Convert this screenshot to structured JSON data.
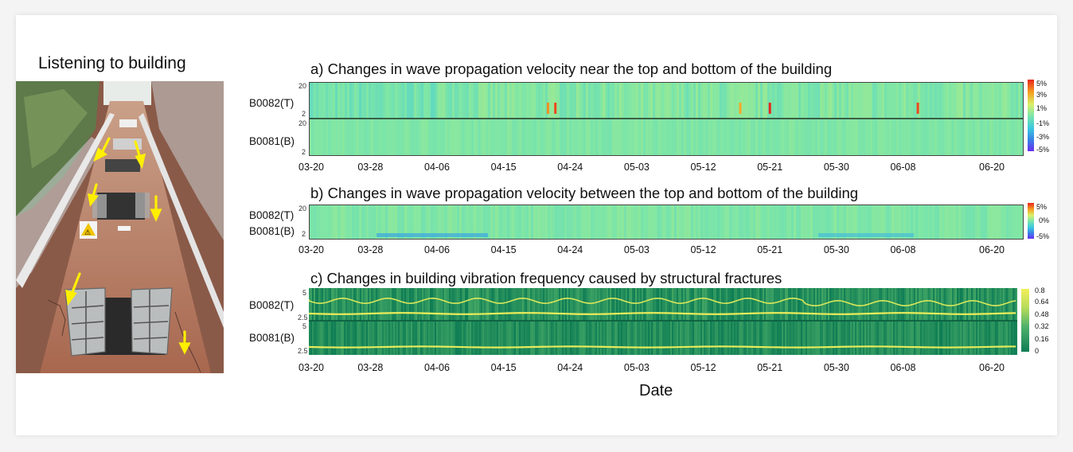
{
  "photo": {
    "title": "Listening to building",
    "sign_text": "⚠"
  },
  "colors": {
    "wall": "#b57a62",
    "arrow": "#ffef00",
    "velocity_base": "#7fe6a6",
    "viridis_dark": "#0f7d55",
    "viridis_light": "#f2ef5a"
  },
  "chart_data": [
    {
      "type": "heatmap",
      "title": "a) Changes in wave propagation velocity near the top and bottom of the building",
      "rows": [
        {
          "label": "B0082(T)",
          "yticks": [
            "20",
            "2"
          ]
        },
        {
          "label": "B0081(B)",
          "yticks": [
            "20",
            "2"
          ]
        }
      ],
      "x_dates": [
        "03-20",
        "03-28",
        "04-06",
        "04-15",
        "04-24",
        "05-03",
        "05-12",
        "05-21",
        "05-30",
        "06-08",
        "06-20"
      ],
      "colorbar": {
        "ticks": [
          "5%",
          "3%",
          "1%",
          "-1%",
          "-3%",
          "-5%"
        ],
        "range": [
          -5,
          5
        ],
        "colormap": "jet"
      },
      "hotspots": [
        {
          "row": 0,
          "date": "04-21",
          "value": 3.5
        },
        {
          "row": 0,
          "date": "04-22",
          "value": 4.5
        },
        {
          "row": 0,
          "date": "05-17",
          "value": 3
        },
        {
          "row": 0,
          "date": "05-21",
          "value": 5
        },
        {
          "row": 0,
          "date": "06-10",
          "value": 4.5
        }
      ]
    },
    {
      "type": "heatmap",
      "title": "b) Changes in wave propagation velocity between the top and bottom of the building",
      "rows": [
        {
          "label": "B0082(T)",
          "yticks": [
            "20"
          ]
        },
        {
          "label": "B0081(B)",
          "yticks": [
            "2"
          ]
        }
      ],
      "x_dates": [
        "03-20",
        "03-28",
        "04-06",
        "04-15",
        "04-24",
        "05-03",
        "05-12",
        "05-21",
        "05-30",
        "06-08",
        "06-20"
      ],
      "colorbar": {
        "ticks": [
          "5%",
          "0%",
          "-5%"
        ],
        "range": [
          -5,
          5
        ],
        "colormap": "jet"
      }
    },
    {
      "type": "heatmap",
      "title": "c) Changes in building vibration frequency caused by structural fractures",
      "rows": [
        {
          "label": "B0082(T)",
          "yticks": [
            "5",
            "2.5"
          ],
          "fundamental_freq": 3.0,
          "upper_band_freq": [
            4.0,
            4.5
          ]
        },
        {
          "label": "B0081(B)",
          "yticks": [
            "5",
            "2.5"
          ],
          "fundamental_freq": 2.9
        }
      ],
      "x_dates": [
        "03-20",
        "03-28",
        "04-06",
        "04-15",
        "04-24",
        "05-03",
        "05-12",
        "05-21",
        "05-30",
        "06-08",
        "06-20"
      ],
      "xlabel": "Date",
      "colorbar": {
        "ticks": [
          "0.8",
          "0.64",
          "0.48",
          "0.32",
          "0.16",
          "0"
        ],
        "range": [
          0,
          0.8
        ],
        "colormap": "viridis"
      }
    }
  ]
}
